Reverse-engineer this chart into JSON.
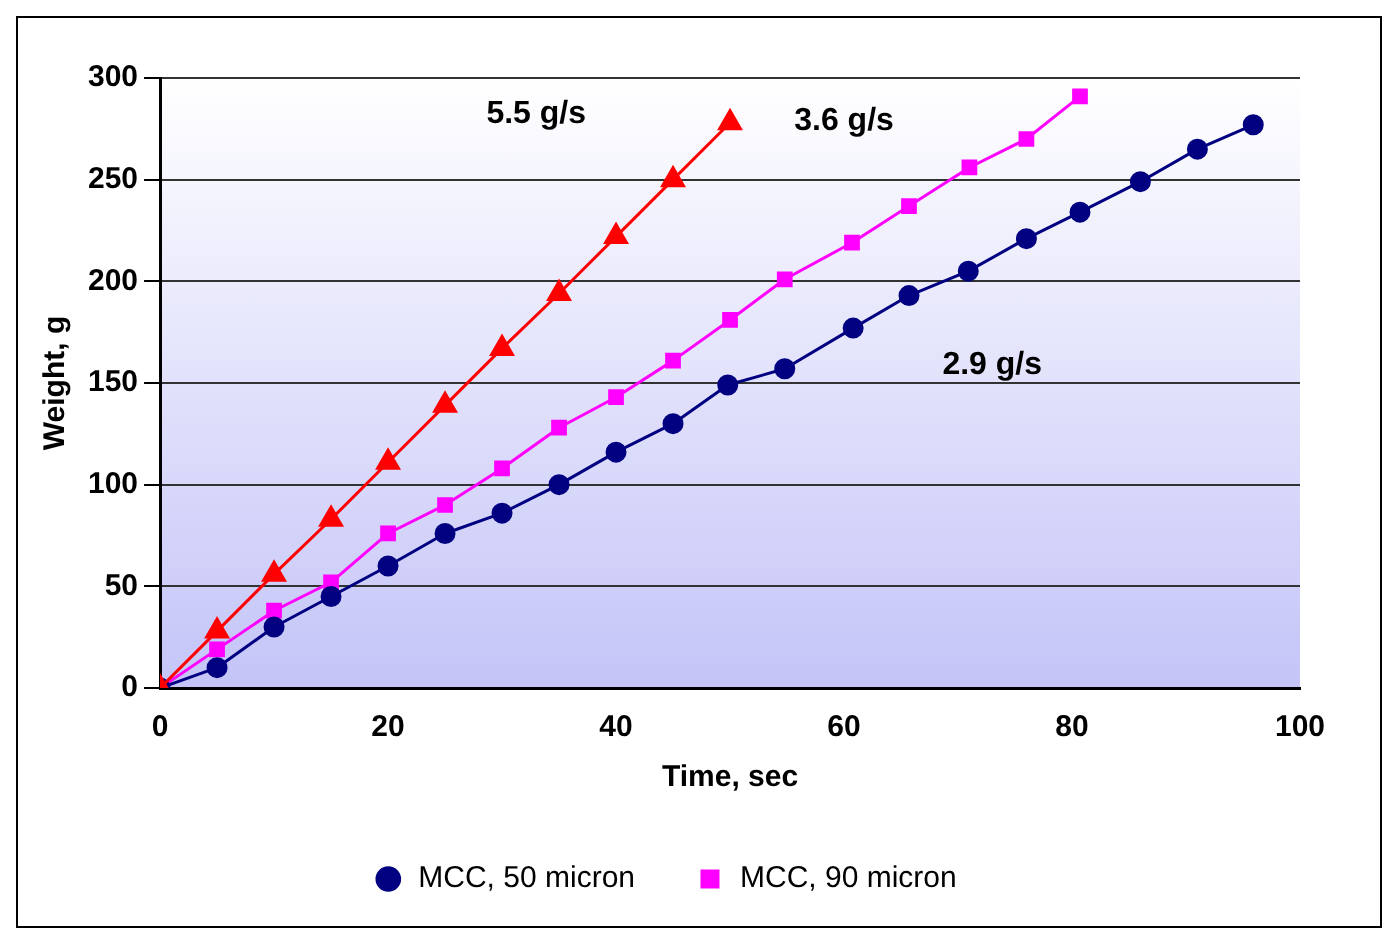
{
  "chart_data": {
    "type": "line",
    "xlabel": "Time, sec",
    "ylabel": "Weight, g",
    "xlim": [
      0,
      100
    ],
    "xticks": [
      0,
      20,
      40,
      60,
      80,
      100
    ],
    "ylim": [
      0,
      300
    ],
    "yticks": [
      0,
      50,
      100,
      150,
      200,
      250,
      300
    ],
    "grid": "y",
    "legend": "bottom",
    "series": [
      {
        "color": "#ff0000",
        "marker": "triangle",
        "x": [
          0,
          5,
          10,
          15,
          20,
          25,
          30,
          35,
          40,
          45,
          50
        ],
        "values": [
          0,
          28,
          56,
          83,
          111,
          139,
          167,
          194,
          222,
          250,
          278
        ]
      },
      {
        "name": "MCC, 50 micron",
        "color": "#000080",
        "marker": "circle",
        "x": [
          0,
          5,
          10,
          15,
          20,
          25,
          30,
          35,
          40,
          45,
          49.8,
          54.8,
          60.8,
          65.7,
          70.9,
          76,
          80.7,
          86,
          91,
          95.9
        ],
        "values": [
          0,
          10,
          30,
          45,
          60,
          76,
          86,
          100,
          116,
          130,
          149,
          157,
          177,
          193,
          205,
          221,
          234,
          249,
          265,
          277
        ]
      },
      {
        "name": "MCC, 90 micron",
        "color": "#ff00ff",
        "marker": "square",
        "x": [
          0,
          5,
          10,
          15,
          20,
          25,
          30,
          35,
          40,
          45,
          50,
          54.8,
          60.7,
          65.7,
          71,
          76,
          80.7
        ],
        "values": [
          0,
          19,
          38,
          52,
          76,
          90,
          108,
          128,
          143,
          161,
          181,
          201,
          219,
          237,
          256,
          270,
          291
        ]
      }
    ],
    "annotations": [
      "5.5 g/s",
      "3.6 g/s",
      "2.9 g/s"
    ]
  }
}
